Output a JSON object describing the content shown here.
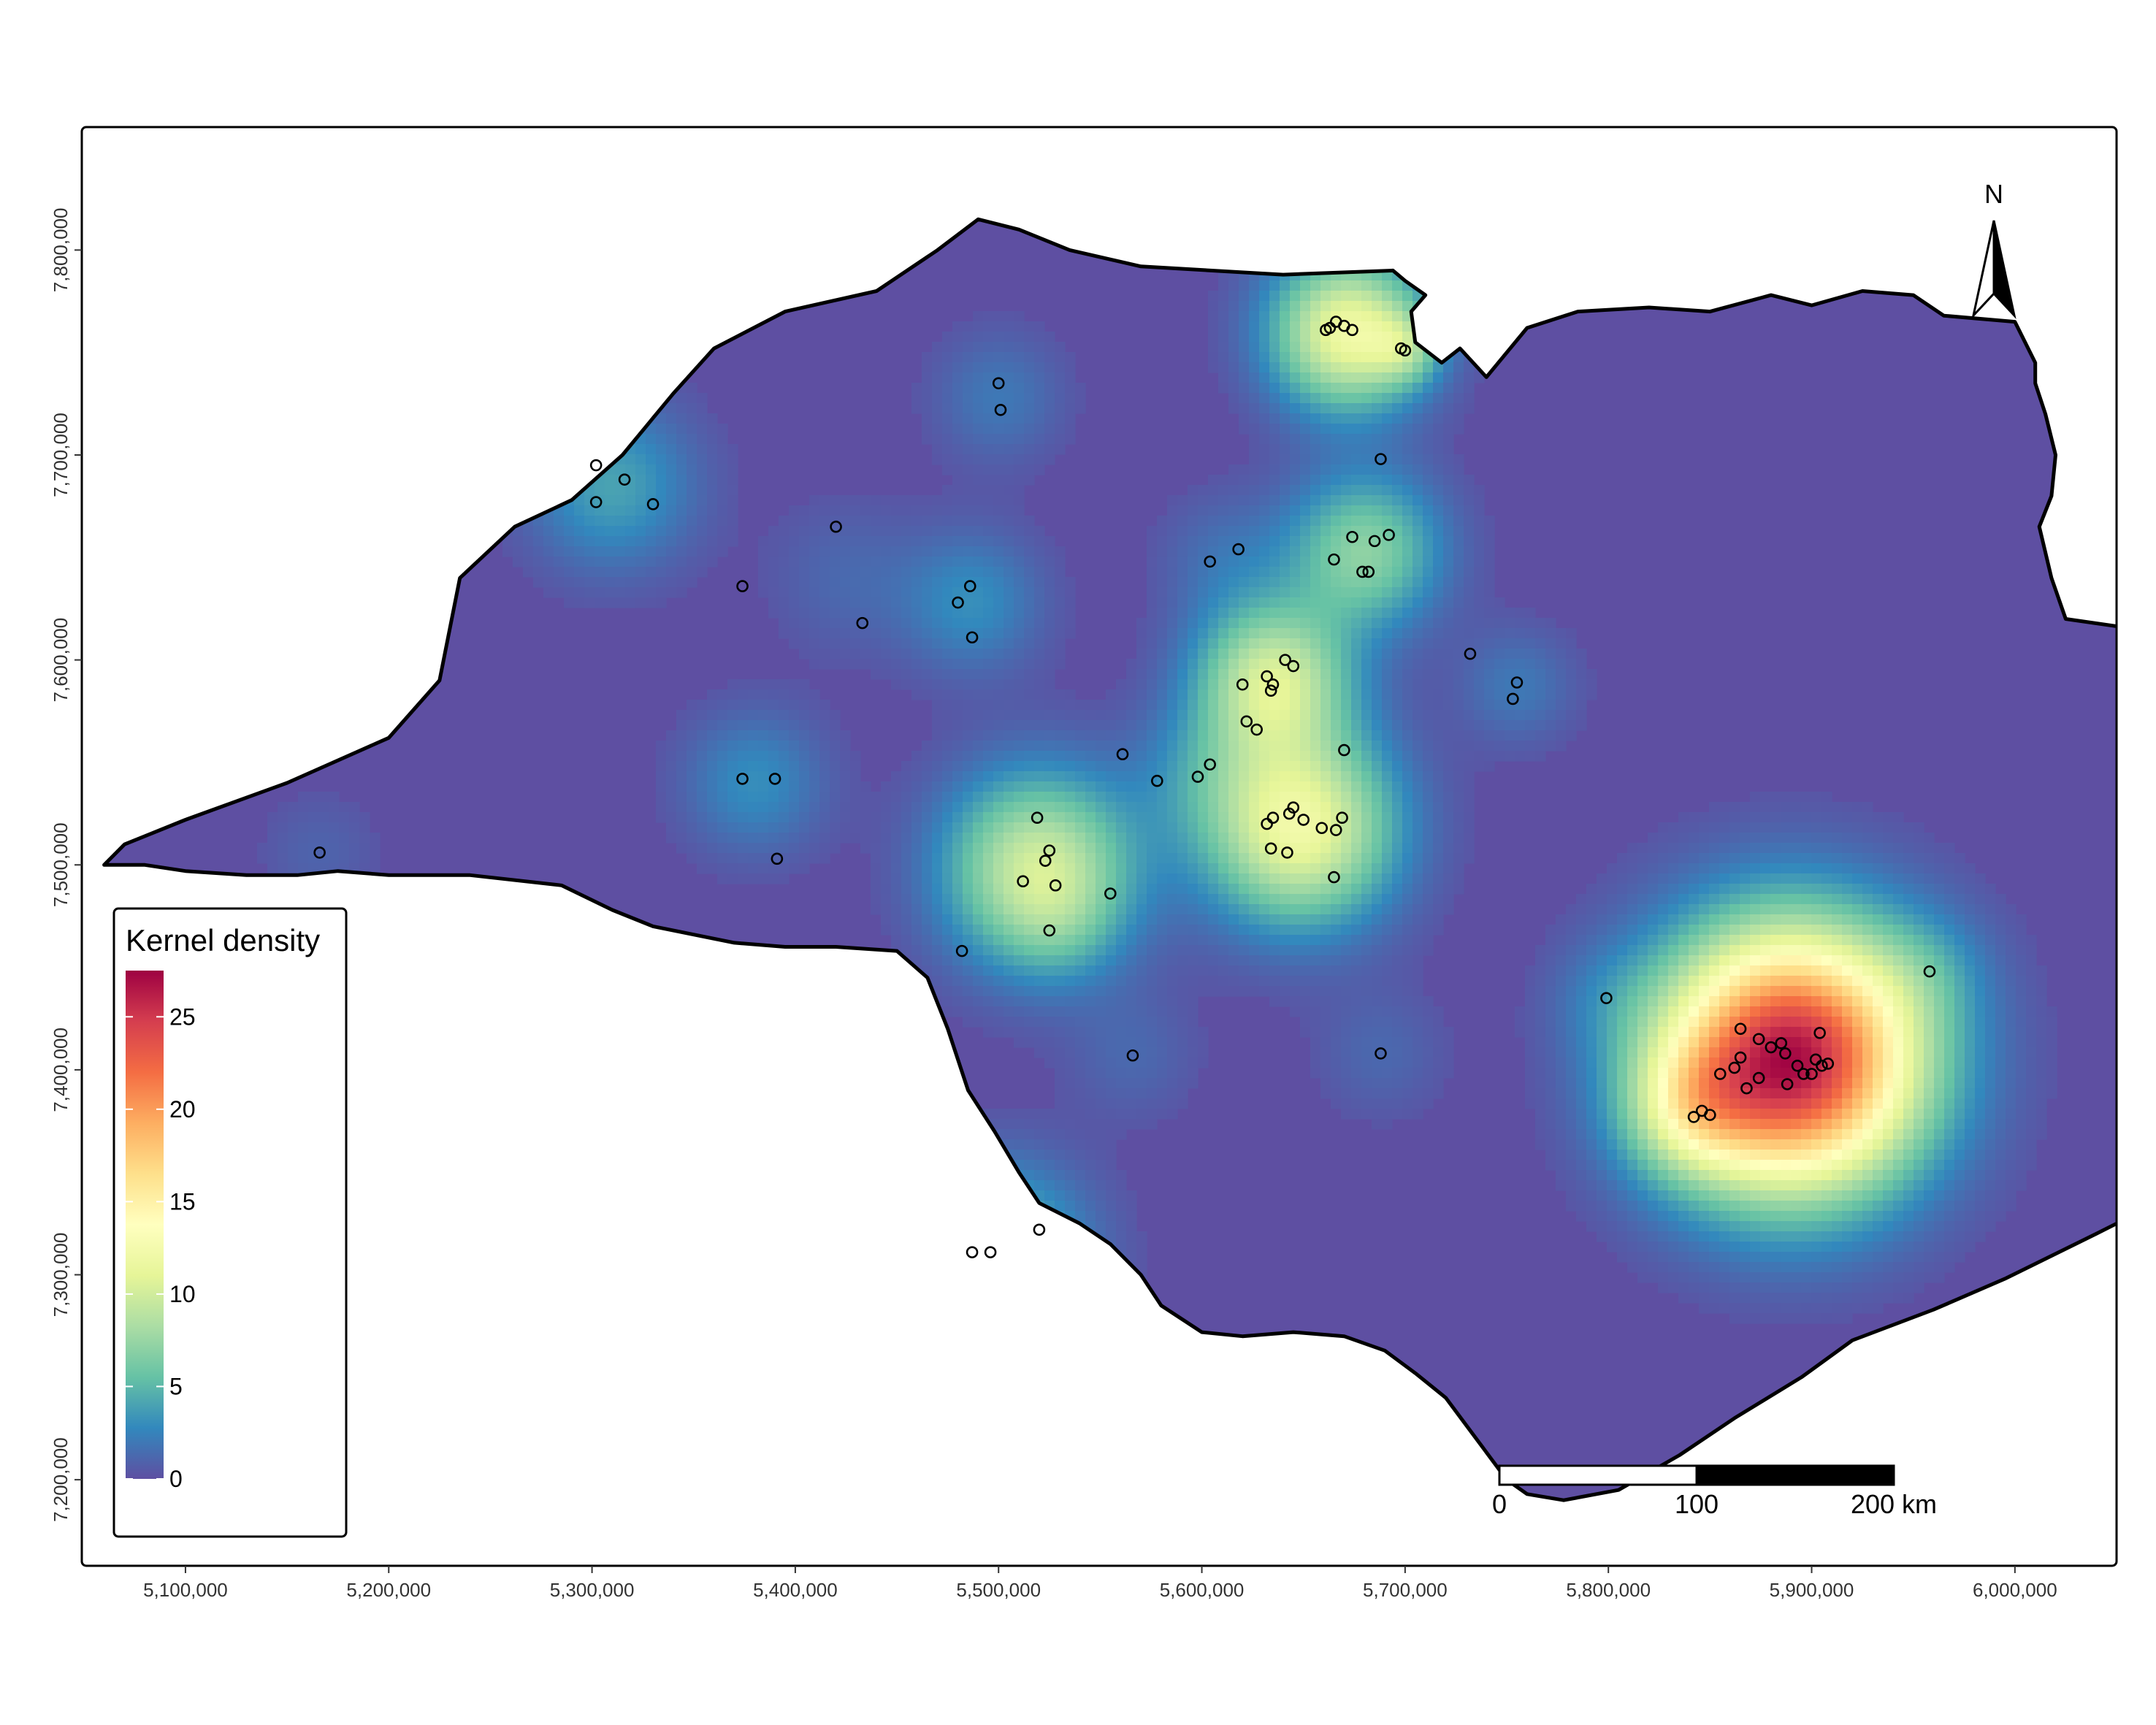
{
  "map": {
    "x_ticks": [
      "5,100,000",
      "5,200,000",
      "5,300,000",
      "5,400,000",
      "5,500,000",
      "5,600,000",
      "5,700,000",
      "5,800,000",
      "5,900,000",
      "6,000,000"
    ],
    "y_ticks": [
      "7,800,000",
      "7,700,000",
      "7,600,000",
      "7,500,000",
      "7,400,000",
      "7,300,000",
      "7,200,000"
    ],
    "x_tick_values": [
      5100000,
      5200000,
      5300000,
      5400000,
      5500000,
      5600000,
      5700000,
      5800000,
      5900000,
      6000000
    ],
    "y_tick_values": [
      7800000,
      7700000,
      7600000,
      7500000,
      7400000,
      7300000,
      7200000
    ],
    "x_range": [
      5049000,
      6050000
    ],
    "y_range": [
      7158000,
      7860000
    ],
    "background_density_color": "#5E4FA2"
  },
  "legend": {
    "title": "Kernel density",
    "labels": [
      "25",
      "20",
      "15",
      "10",
      "5",
      "0"
    ],
    "values": [
      25,
      20,
      15,
      10,
      5,
      0
    ],
    "max": 27.5,
    "colors": [
      "#5E4FA2",
      "#3288BD",
      "#66C2A5",
      "#ABDDA4",
      "#E6F598",
      "#FFFFBF",
      "#FEE08B",
      "#FDAE61",
      "#F46D43",
      "#D53E4F",
      "#9E0142"
    ]
  },
  "scale_bar": {
    "labels": [
      "0",
      "100",
      "200 km"
    ],
    "values_km": [
      0,
      100,
      200
    ]
  },
  "north_arrow": {
    "label": "N",
    "icon": "north-arrow-icon"
  },
  "occurrences": [
    [
      5166000,
      7506000
    ],
    [
      5302000,
      7695000
    ],
    [
      5316000,
      7688000
    ],
    [
      5302000,
      7677000
    ],
    [
      5330000,
      7676000
    ],
    [
      5374000,
      7636000
    ],
    [
      5420000,
      7665000
    ],
    [
      5433000,
      7618000
    ],
    [
      5374000,
      7542000
    ],
    [
      5390000,
      7542000
    ],
    [
      5391000,
      7503000
    ],
    [
      5500000,
      7735000
    ],
    [
      5501000,
      7722000
    ],
    [
      5480000,
      7628000
    ],
    [
      5486000,
      7636000
    ],
    [
      5487000,
      7611000
    ],
    [
      5482000,
      7458000
    ],
    [
      5519000,
      7523000
    ],
    [
      5525000,
      7507000
    ],
    [
      5523000,
      7502000
    ],
    [
      5512000,
      7492000
    ],
    [
      5528000,
      7490000
    ],
    [
      5525000,
      7468000
    ],
    [
      5555000,
      7486000
    ],
    [
      5561000,
      7554000
    ],
    [
      5578000,
      7541000
    ],
    [
      5598000,
      7543000
    ],
    [
      5604000,
      7549000
    ],
    [
      5604000,
      7648000
    ],
    [
      5618000,
      7654000
    ],
    [
      5620000,
      7588000
    ],
    [
      5632000,
      7592000
    ],
    [
      5634000,
      7585000
    ],
    [
      5635000,
      7588000
    ],
    [
      5641000,
      7600000
    ],
    [
      5645000,
      7597000
    ],
    [
      5622000,
      7570000
    ],
    [
      5627000,
      7566000
    ],
    [
      5632000,
      7520000
    ],
    [
      5635000,
      7523000
    ],
    [
      5643000,
      7525000
    ],
    [
      5645000,
      7528000
    ],
    [
      5650000,
      7522000
    ],
    [
      5634000,
      7508000
    ],
    [
      5642000,
      7506000
    ],
    [
      5659000,
      7518000
    ],
    [
      5666000,
      7517000
    ],
    [
      5669000,
      7523000
    ],
    [
      5665000,
      7494000
    ],
    [
      5670000,
      7556000
    ],
    [
      5663000,
      7762000
    ],
    [
      5666000,
      7765000
    ],
    [
      5670000,
      7763000
    ],
    [
      5674000,
      7761000
    ],
    [
      5661000,
      7761000
    ],
    [
      5698000,
      7752000
    ],
    [
      5700000,
      7751000
    ],
    [
      5665000,
      7649000
    ],
    [
      5674000,
      7660000
    ],
    [
      5679000,
      7643000
    ],
    [
      5682000,
      7643000
    ],
    [
      5685000,
      7658000
    ],
    [
      5692000,
      7661000
    ],
    [
      5688000,
      7698000
    ],
    [
      5732000,
      7603000
    ],
    [
      5755000,
      7589000
    ],
    [
      5753000,
      7581000
    ],
    [
      5566000,
      7407000
    ],
    [
      5688000,
      7408000
    ],
    [
      5799000,
      7435000
    ],
    [
      5487000,
      7311000
    ],
    [
      5496000,
      7311000
    ],
    [
      5520000,
      7322000
    ],
    [
      5958000,
      7448000
    ],
    [
      5865000,
      7420000
    ],
    [
      5874000,
      7415000
    ],
    [
      5880000,
      7411000
    ],
    [
      5885000,
      7413000
    ],
    [
      5887000,
      7408000
    ],
    [
      5893000,
      7402000
    ],
    [
      5896000,
      7398000
    ],
    [
      5902000,
      7405000
    ],
    [
      5904000,
      7418000
    ],
    [
      5905000,
      7402000
    ],
    [
      5908000,
      7403000
    ],
    [
      5862000,
      7401000
    ],
    [
      5865000,
      7406000
    ],
    [
      5855000,
      7398000
    ],
    [
      5874000,
      7396000
    ],
    [
      5868000,
      7391000
    ],
    [
      5888000,
      7393000
    ],
    [
      5900000,
      7398000
    ],
    [
      5842000,
      7377000
    ],
    [
      5846000,
      7380000
    ],
    [
      5850000,
      7378000
    ]
  ],
  "hotspots": [
    [
      5890000,
      7405000,
      44000,
      27
    ],
    [
      5840000,
      7382000,
      22000,
      6
    ],
    [
      5648000,
      7518000,
      32000,
      12
    ],
    [
      5635000,
      7590000,
      26000,
      10
    ],
    [
      5672000,
      7760000,
      26000,
      12
    ],
    [
      5700000,
      7752000,
      12000,
      4
    ],
    [
      5680000,
      7653000,
      26000,
      7
    ],
    [
      5520000,
      7498000,
      32000,
      10
    ],
    [
      5500000,
      7310000,
      30000,
      6
    ],
    [
      5310000,
      7685000,
      28000,
      4
    ],
    [
      5380000,
      7540000,
      24000,
      3
    ],
    [
      5487000,
      7628000,
      24000,
      3
    ],
    [
      5500000,
      7728000,
      22000,
      2
    ],
    [
      5755000,
      7587000,
      20000,
      2
    ],
    [
      5611000,
      7650000,
      22000,
      1.5
    ],
    [
      5600000,
      7545000,
      24000,
      2
    ],
    [
      5566000,
      7407000,
      22000,
      1.2
    ],
    [
      5688000,
      7408000,
      22000,
      1.2
    ],
    [
      5799000,
      7435000,
      20000,
      1.2
    ],
    [
      5958000,
      7448000,
      20000,
      1.5
    ],
    [
      5166000,
      7506000,
      20000,
      1
    ],
    [
      5425000,
      7640000,
      26000,
      1.2
    ],
    [
      5530000,
      7470000,
      20000,
      1.5
    ]
  ],
  "boundary": [
    [
      5060,
      7500
    ],
    [
      5070,
      7510
    ],
    [
      5100,
      7522
    ],
    [
      5150,
      7540
    ],
    [
      5200,
      7562
    ],
    [
      5225,
      7590
    ],
    [
      5235,
      7640
    ],
    [
      5262,
      7665
    ],
    [
      5290,
      7678
    ],
    [
      5315,
      7700
    ],
    [
      5340,
      7730
    ],
    [
      5360,
      7752
    ],
    [
      5395,
      7770
    ],
    [
      5440,
      7780
    ],
    [
      5470,
      7800
    ],
    [
      5490,
      7815
    ],
    [
      5510,
      7810
    ],
    [
      5535,
      7800
    ],
    [
      5570,
      7792
    ],
    [
      5640,
      7788
    ],
    [
      5694,
      7790
    ],
    [
      5700,
      7785
    ],
    [
      5710,
      7778
    ],
    [
      5703,
      7770
    ],
    [
      5705,
      7755
    ],
    [
      5718,
      7745
    ],
    [
      5727,
      7752
    ],
    [
      5740,
      7738
    ],
    [
      5760,
      7762
    ],
    [
      5785,
      7770
    ],
    [
      5820,
      7772
    ],
    [
      5850,
      7770
    ],
    [
      5880,
      7778
    ],
    [
      5900,
      7773
    ],
    [
      5925,
      7780
    ],
    [
      5950,
      7778
    ],
    [
      5965,
      7768
    ],
    [
      6000,
      7765
    ],
    [
      6005,
      7755
    ],
    [
      6010,
      7745
    ],
    [
      6010,
      7735
    ],
    [
      6015,
      7720
    ],
    [
      6020,
      7700
    ],
    [
      6018,
      7680
    ],
    [
      6012,
      7665
    ],
    [
      6018,
      7640
    ],
    [
      6025,
      7620
    ],
    [
      6060,
      7615
    ],
    [
      6088,
      7610
    ],
    [
      6095,
      7600
    ],
    [
      6090,
      7580
    ],
    [
      6085,
      7555
    ],
    [
      6080,
      7535
    ],
    [
      6085,
      7515
    ],
    [
      6095,
      7500
    ],
    [
      6100,
      7478
    ],
    [
      6110,
      7465
    ],
    [
      6140,
      7470
    ],
    [
      6160,
      7475
    ],
    [
      6170,
      7478
    ],
    [
      6200,
      7482
    ],
    [
      6230,
      7485
    ],
    [
      6260,
      7490
    ],
    [
      6290,
      7488
    ],
    [
      6320,
      7482
    ],
    [
      6335,
      7478
    ],
    [
      6345,
      7475
    ],
    [
      6350,
      7470
    ],
    [
      6355,
      7462
    ],
    [
      6345,
      7455
    ],
    [
      6320,
      7448
    ],
    [
      6300,
      7432
    ],
    [
      6287,
      7420
    ],
    [
      6270,
      7410
    ],
    [
      6260,
      7403
    ],
    [
      6250,
      7395
    ],
    [
      6233,
      7388
    ],
    [
      6210,
      7383
    ],
    [
      6190,
      7380
    ],
    [
      6175,
      7375
    ],
    [
      6180,
      7360
    ],
    [
      6165,
      7352
    ],
    [
      6140,
      7348
    ],
    [
      6110,
      7345
    ],
    [
      6070,
      7335
    ],
    [
      6040,
      7320
    ],
    [
      5995,
      7298
    ],
    [
      5960,
      7283
    ],
    [
      5920,
      7268
    ],
    [
      5895,
      7250
    ],
    [
      5862,
      7230
    ],
    [
      5835,
      7212
    ],
    [
      5805,
      7195
    ],
    [
      5778,
      7190
    ],
    [
      5760,
      7193
    ],
    [
      5750,
      7200
    ],
    [
      5735,
      7220
    ],
    [
      5720,
      7240
    ],
    [
      5705,
      7252
    ],
    [
      5690,
      7263
    ],
    [
      5670,
      7270
    ],
    [
      5645,
      7272
    ],
    [
      5620,
      7270
    ],
    [
      5600,
      7272
    ],
    [
      5580,
      7285
    ],
    [
      5570,
      7300
    ],
    [
      5555,
      7315
    ],
    [
      5540,
      7325
    ],
    [
      5520,
      7335
    ],
    [
      5510,
      7350
    ],
    [
      5498,
      7370
    ],
    [
      5485,
      7390
    ],
    [
      5475,
      7420
    ],
    [
      5465,
      7445
    ],
    [
      5450,
      7458
    ],
    [
      5420,
      7460
    ],
    [
      5395,
      7460
    ],
    [
      5370,
      7462
    ],
    [
      5350,
      7466
    ],
    [
      5330,
      7470
    ],
    [
      5310,
      7478
    ],
    [
      5285,
      7490
    ],
    [
      5240,
      7495
    ],
    [
      5200,
      7495
    ],
    [
      5175,
      7497
    ],
    [
      5155,
      7495
    ],
    [
      5130,
      7495
    ],
    [
      5100,
      7497
    ],
    [
      5080,
      7500
    ],
    [
      5060,
      7500
    ]
  ]
}
